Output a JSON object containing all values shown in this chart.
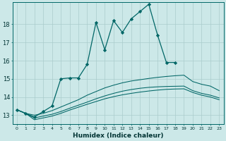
{
  "xlabel": "Humidex (Indice chaleur)",
  "background_color": "#cce8e8",
  "grid_color": "#aacccc",
  "line_color": "#006666",
  "xlim": [
    -0.5,
    23.5
  ],
  "ylim": [
    12.5,
    19.2
  ],
  "xticks": [
    0,
    1,
    2,
    3,
    4,
    5,
    6,
    7,
    8,
    9,
    10,
    11,
    12,
    13,
    14,
    15,
    16,
    17,
    18,
    19,
    20,
    21,
    22,
    23
  ],
  "yticks": [
    13,
    14,
    15,
    16,
    17,
    18
  ],
  "main_x": [
    0,
    1,
    2,
    3,
    4,
    5,
    6,
    7,
    8,
    9,
    10,
    11,
    12,
    13,
    14,
    15,
    16,
    17,
    18
  ],
  "main_y": [
    13.3,
    13.1,
    12.9,
    13.2,
    13.5,
    15.0,
    15.05,
    15.05,
    15.8,
    18.1,
    16.6,
    18.2,
    17.55,
    18.3,
    18.7,
    19.1,
    17.4,
    15.9,
    15.9
  ],
  "line2_x": [
    0,
    1,
    2,
    3,
    4,
    5,
    6,
    7,
    8,
    9,
    10,
    11,
    12,
    13,
    14,
    15,
    16,
    17,
    18,
    19,
    20,
    21,
    22,
    23
  ],
  "line2_y": [
    13.3,
    13.1,
    13.0,
    13.1,
    13.25,
    13.45,
    13.65,
    13.85,
    14.1,
    14.3,
    14.5,
    14.65,
    14.78,
    14.88,
    14.95,
    15.02,
    15.08,
    15.13,
    15.17,
    15.2,
    14.85,
    14.7,
    14.6,
    14.35
  ],
  "line3_x": [
    0,
    1,
    2,
    3,
    4,
    5,
    6,
    7,
    8,
    9,
    10,
    11,
    12,
    13,
    14,
    15,
    16,
    17,
    18,
    19,
    20,
    21,
    22,
    23
  ],
  "line3_y": [
    13.3,
    13.1,
    12.85,
    12.95,
    13.05,
    13.2,
    13.38,
    13.55,
    13.72,
    13.9,
    14.06,
    14.2,
    14.32,
    14.41,
    14.48,
    14.53,
    14.56,
    14.58,
    14.59,
    14.6,
    14.35,
    14.2,
    14.1,
    13.95
  ],
  "line4_x": [
    0,
    1,
    2,
    3,
    4,
    5,
    6,
    7,
    8,
    9,
    10,
    11,
    12,
    13,
    14,
    15,
    16,
    17,
    18,
    19,
    20,
    21,
    22,
    23
  ],
  "line4_y": [
    13.3,
    13.1,
    12.75,
    12.85,
    12.95,
    13.1,
    13.28,
    13.44,
    13.6,
    13.75,
    13.9,
    14.02,
    14.12,
    14.2,
    14.27,
    14.33,
    14.38,
    14.42,
    14.44,
    14.45,
    14.25,
    14.1,
    14.0,
    13.85
  ]
}
